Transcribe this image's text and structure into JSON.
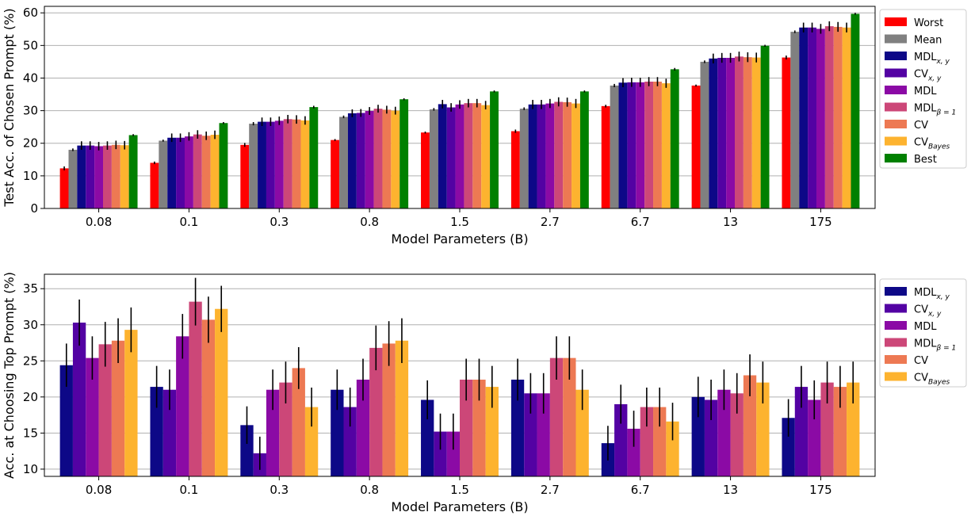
{
  "chart_data": [
    {
      "type": "bar",
      "title": "",
      "xlabel": "Model Parameters (B)",
      "ylabel": "Test Acc. of Chosen Prompt (%)",
      "ylim": [
        0,
        62
      ],
      "yticks": [
        0,
        10,
        20,
        30,
        40,
        50,
        60
      ],
      "grid": "y",
      "legend_placement": "outside-right",
      "categories": [
        "0.08",
        "0.1",
        "0.3",
        "0.8",
        "1.5",
        "2.7",
        "6.7",
        "13",
        "175"
      ],
      "series": [
        {
          "name": "Worst",
          "label_main": "Worst",
          "label_sub": "",
          "color": "#ff0000",
          "values": [
            12.3,
            14.0,
            19.5,
            21.0,
            23.3,
            23.7,
            31.4,
            37.7,
            46.3
          ],
          "errors": [
            0.6,
            0.4,
            0.6,
            0.3,
            0.3,
            0.5,
            0.4,
            0.3,
            0.6
          ]
        },
        {
          "name": "Mean",
          "label_main": "Mean",
          "label_sub": "",
          "color": "#808080",
          "values": [
            18.0,
            20.8,
            26.0,
            28.1,
            30.4,
            30.6,
            37.7,
            45.0,
            54.2
          ],
          "errors": [
            0.4,
            0.3,
            0.5,
            0.4,
            0.4,
            0.4,
            0.5,
            0.4,
            0.4
          ]
        },
        {
          "name": "MDLx,y",
          "label_main": "MDL",
          "label_sub": "x, y",
          "color": "#0d0887",
          "values": [
            19.3,
            21.7,
            26.6,
            29.2,
            32.0,
            31.9,
            38.6,
            46.0,
            55.5
          ],
          "errors": [
            1.3,
            1.3,
            1.3,
            1.2,
            1.3,
            1.4,
            1.4,
            1.5,
            1.5
          ]
        },
        {
          "name": "CVx,y",
          "label_main": "CV",
          "label_sub": "x, y",
          "color": "#5302a3",
          "values": [
            19.3,
            21.7,
            26.6,
            29.3,
            31.0,
            31.9,
            38.7,
            46.2,
            55.5
          ],
          "errors": [
            1.3,
            1.3,
            1.3,
            1.2,
            1.3,
            1.4,
            1.4,
            1.5,
            1.5
          ]
        },
        {
          "name": "MDL",
          "label_main": "MDL",
          "label_sub": "",
          "color": "#8b0aa5",
          "values": [
            19.1,
            22.1,
            26.9,
            29.9,
            31.9,
            32.2,
            38.7,
            46.2,
            55.1
          ],
          "errors": [
            1.3,
            1.3,
            1.3,
            1.2,
            1.3,
            1.4,
            1.4,
            1.5,
            1.5
          ]
        },
        {
          "name": "MDLβ=1",
          "label_main": "MDL",
          "label_sub": "β = 1",
          "color": "#cc4778",
          "values": [
            19.3,
            22.7,
            27.4,
            30.6,
            32.3,
            32.7,
            38.9,
            46.6,
            55.9
          ],
          "errors": [
            1.3,
            1.3,
            1.3,
            1.2,
            1.3,
            1.4,
            1.4,
            1.5,
            1.5
          ]
        },
        {
          "name": "CV",
          "label_main": "CV",
          "label_sub": "",
          "color": "#ed7953",
          "values": [
            19.5,
            22.3,
            27.3,
            30.3,
            32.3,
            32.6,
            38.9,
            46.4,
            55.7
          ],
          "errors": [
            1.3,
            1.3,
            1.3,
            1.2,
            1.3,
            1.4,
            1.4,
            1.5,
            1.5
          ]
        },
        {
          "name": "CVBayes",
          "label_main": "CV",
          "label_sub": "Bayes",
          "color": "#fdb32f",
          "values": [
            19.4,
            22.6,
            27.0,
            30.0,
            31.7,
            32.2,
            38.4,
            46.3,
            55.5
          ],
          "errors": [
            1.3,
            1.3,
            1.3,
            1.2,
            1.3,
            1.4,
            1.4,
            1.5,
            1.5
          ]
        },
        {
          "name": "Best",
          "label_main": "Best",
          "label_sub": "",
          "color": "#008000",
          "values": [
            22.5,
            26.2,
            31.1,
            33.5,
            35.9,
            35.9,
            42.7,
            49.9,
            59.7
          ],
          "errors": [
            0.3,
            0.3,
            0.4,
            0.3,
            0.3,
            0.3,
            0.4,
            0.3,
            0.3
          ]
        }
      ]
    },
    {
      "type": "bar",
      "title": "",
      "xlabel": "Model Parameters (B)",
      "ylabel": "Acc. at Choosing Top Prompt (%)",
      "ylim": [
        9,
        37
      ],
      "yticks": [
        10,
        15,
        20,
        25,
        30,
        35
      ],
      "grid": "y",
      "legend_placement": "outside-right",
      "categories": [
        "0.08",
        "0.1",
        "0.3",
        "0.8",
        "1.5",
        "2.7",
        "6.7",
        "13",
        "175"
      ],
      "series": [
        {
          "name": "MDLx,y",
          "label_main": "MDL",
          "label_sub": "x, y",
          "color": "#0d0887",
          "values": [
            24.4,
            21.4,
            16.1,
            21.0,
            19.6,
            22.4,
            13.6,
            20.0,
            17.1
          ],
          "errors": [
            3.0,
            2.9,
            2.6,
            2.8,
            2.7,
            2.9,
            2.4,
            2.8,
            2.6
          ]
        },
        {
          "name": "CVx,y",
          "label_main": "CV",
          "label_sub": "x, y",
          "color": "#5302a3",
          "values": [
            30.3,
            21.0,
            12.2,
            18.6,
            15.2,
            20.5,
            19.0,
            19.6,
            21.4
          ],
          "errors": [
            3.2,
            2.8,
            2.3,
            2.7,
            2.5,
            2.8,
            2.7,
            2.8,
            2.9
          ]
        },
        {
          "name": "MDL",
          "label_main": "MDL",
          "label_sub": "",
          "color": "#8b0aa5",
          "values": [
            25.4,
            28.4,
            21.0,
            22.4,
            15.2,
            20.5,
            15.6,
            21.0,
            19.6
          ],
          "errors": [
            3.0,
            3.1,
            2.8,
            2.9,
            2.5,
            2.8,
            2.5,
            2.8,
            2.7
          ]
        },
        {
          "name": "MDLβ=1",
          "label_main": "MDL",
          "label_sub": "β = 1",
          "color": "#cc4778",
          "values": [
            27.3,
            33.2,
            22.0,
            26.8,
            22.4,
            25.4,
            18.6,
            20.5,
            22.0
          ],
          "errors": [
            3.1,
            3.3,
            2.9,
            3.1,
            2.9,
            3.0,
            2.7,
            2.8,
            2.9
          ]
        },
        {
          "name": "CV",
          "label_main": "CV",
          "label_sub": "",
          "color": "#ed7953",
          "values": [
            27.8,
            30.7,
            24.0,
            27.4,
            22.4,
            25.4,
            18.6,
            23.0,
            21.4
          ],
          "errors": [
            3.1,
            3.2,
            2.9,
            3.1,
            2.9,
            3.0,
            2.7,
            2.9,
            2.9
          ]
        },
        {
          "name": "CVBayes",
          "label_main": "CV",
          "label_sub": "Bayes",
          "color": "#fdb32f",
          "values": [
            29.3,
            32.2,
            18.6,
            27.8,
            21.4,
            21.0,
            16.6,
            22.0,
            22.0
          ],
          "errors": [
            3.1,
            3.2,
            2.7,
            3.1,
            2.9,
            2.8,
            2.6,
            2.9,
            2.9
          ]
        }
      ]
    }
  ]
}
